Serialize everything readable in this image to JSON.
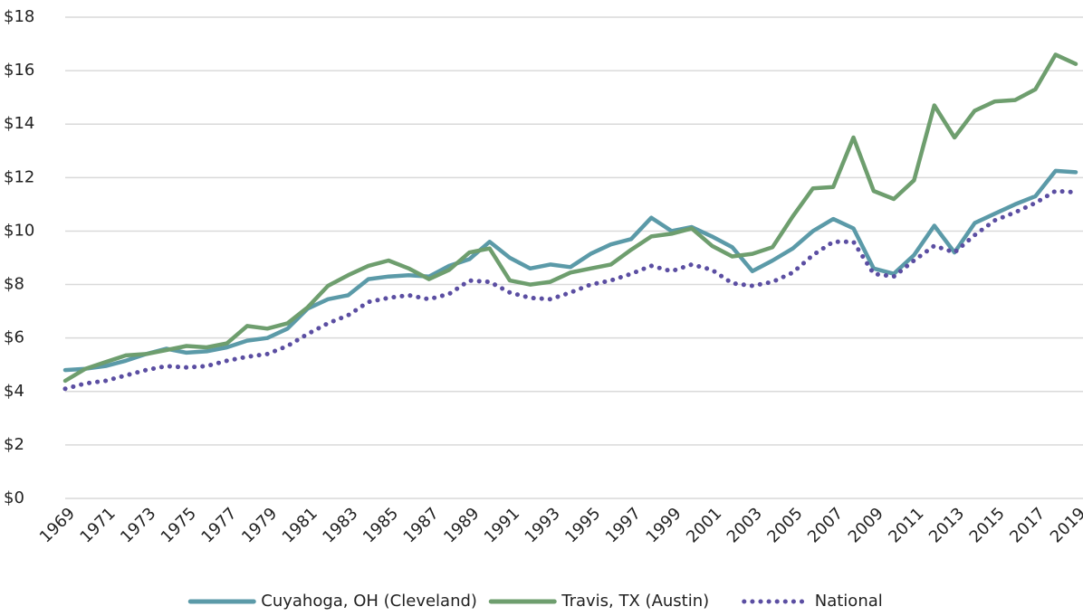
{
  "chart_data": {
    "type": "line",
    "categories": [
      "1969",
      null,
      "1971",
      null,
      "1973",
      null,
      "1975",
      null,
      "1977",
      null,
      "1979",
      null,
      "1981",
      null,
      "1983",
      null,
      "1985",
      null,
      "1987",
      null,
      "1989",
      null,
      "1991",
      null,
      "1993",
      null,
      "1995",
      null,
      "1997",
      null,
      "1999",
      null,
      "2001",
      null,
      "2003",
      null,
      "2005",
      null,
      "2007",
      null,
      "2009",
      null,
      "2011",
      null,
      "2013",
      null,
      "2015",
      null,
      "2017",
      null,
      "2019"
    ],
    "series": [
      {
        "name": "Cuyahoga, OH (Cleveland)",
        "color": "#5b9aa8",
        "style": "solid",
        "values": [
          4.8,
          4.85,
          4.95,
          5.15,
          5.4,
          5.6,
          5.45,
          5.5,
          5.65,
          5.9,
          6.0,
          6.35,
          7.1,
          7.45,
          7.6,
          8.2,
          8.3,
          8.35,
          8.3,
          8.7,
          8.95,
          9.6,
          9.0,
          8.6,
          8.75,
          8.65,
          9.15,
          9.5,
          9.7,
          10.5,
          10.0,
          10.15,
          9.8,
          9.4,
          8.5,
          8.9,
          9.35,
          10.0,
          10.45,
          10.1,
          8.6,
          8.4,
          9.1,
          10.2,
          9.2,
          10.3,
          10.65,
          11.0,
          11.3,
          12.25,
          12.2
        ]
      },
      {
        "name": "Travis, TX (Austin)",
        "color": "#6e9e6e",
        "style": "solid",
        "values": [
          4.4,
          4.85,
          5.1,
          5.35,
          5.4,
          5.55,
          5.7,
          5.65,
          5.8,
          6.45,
          6.35,
          6.55,
          7.15,
          7.95,
          8.35,
          8.7,
          8.9,
          8.6,
          8.2,
          8.55,
          9.2,
          9.35,
          8.15,
          8.0,
          8.1,
          8.45,
          8.6,
          8.75,
          9.3,
          9.8,
          9.9,
          10.1,
          9.45,
          9.05,
          9.15,
          9.4,
          10.55,
          11.6,
          11.65,
          13.5,
          11.5,
          11.2,
          11.9,
          14.7,
          13.5,
          14.5,
          14.85,
          14.9,
          15.3,
          16.6,
          16.25
        ]
      },
      {
        "name": "National",
        "color": "#5b4ea2",
        "style": "dotted",
        "values": [
          4.1,
          4.3,
          4.4,
          4.6,
          4.8,
          4.95,
          4.9,
          4.95,
          5.15,
          5.3,
          5.4,
          5.7,
          6.15,
          6.55,
          6.85,
          7.35,
          7.5,
          7.6,
          7.45,
          7.65,
          8.15,
          8.1,
          7.7,
          7.5,
          7.45,
          7.7,
          8.0,
          8.15,
          8.4,
          8.7,
          8.5,
          8.75,
          8.55,
          8.05,
          7.95,
          8.1,
          8.45,
          9.1,
          9.6,
          9.6,
          8.4,
          8.3,
          8.9,
          9.45,
          9.2,
          9.85,
          10.4,
          10.7,
          11.05,
          11.5,
          11.45
        ]
      }
    ],
    "ylim": [
      0,
      18
    ],
    "yticks": [
      {
        "value": 0,
        "label": "$0"
      },
      {
        "value": 2,
        "label": "$2"
      },
      {
        "value": 4,
        "label": "$4"
      },
      {
        "value": 6,
        "label": "$6"
      },
      {
        "value": 8,
        "label": "$8"
      },
      {
        "value": 10,
        "label": "$10"
      },
      {
        "value": 12,
        "label": "$12"
      },
      {
        "value": 14,
        "label": "$14"
      },
      {
        "value": 16,
        "label": "$16"
      },
      {
        "value": 18,
        "label": "$18"
      }
    ],
    "grid": true,
    "legend": "bottom"
  }
}
